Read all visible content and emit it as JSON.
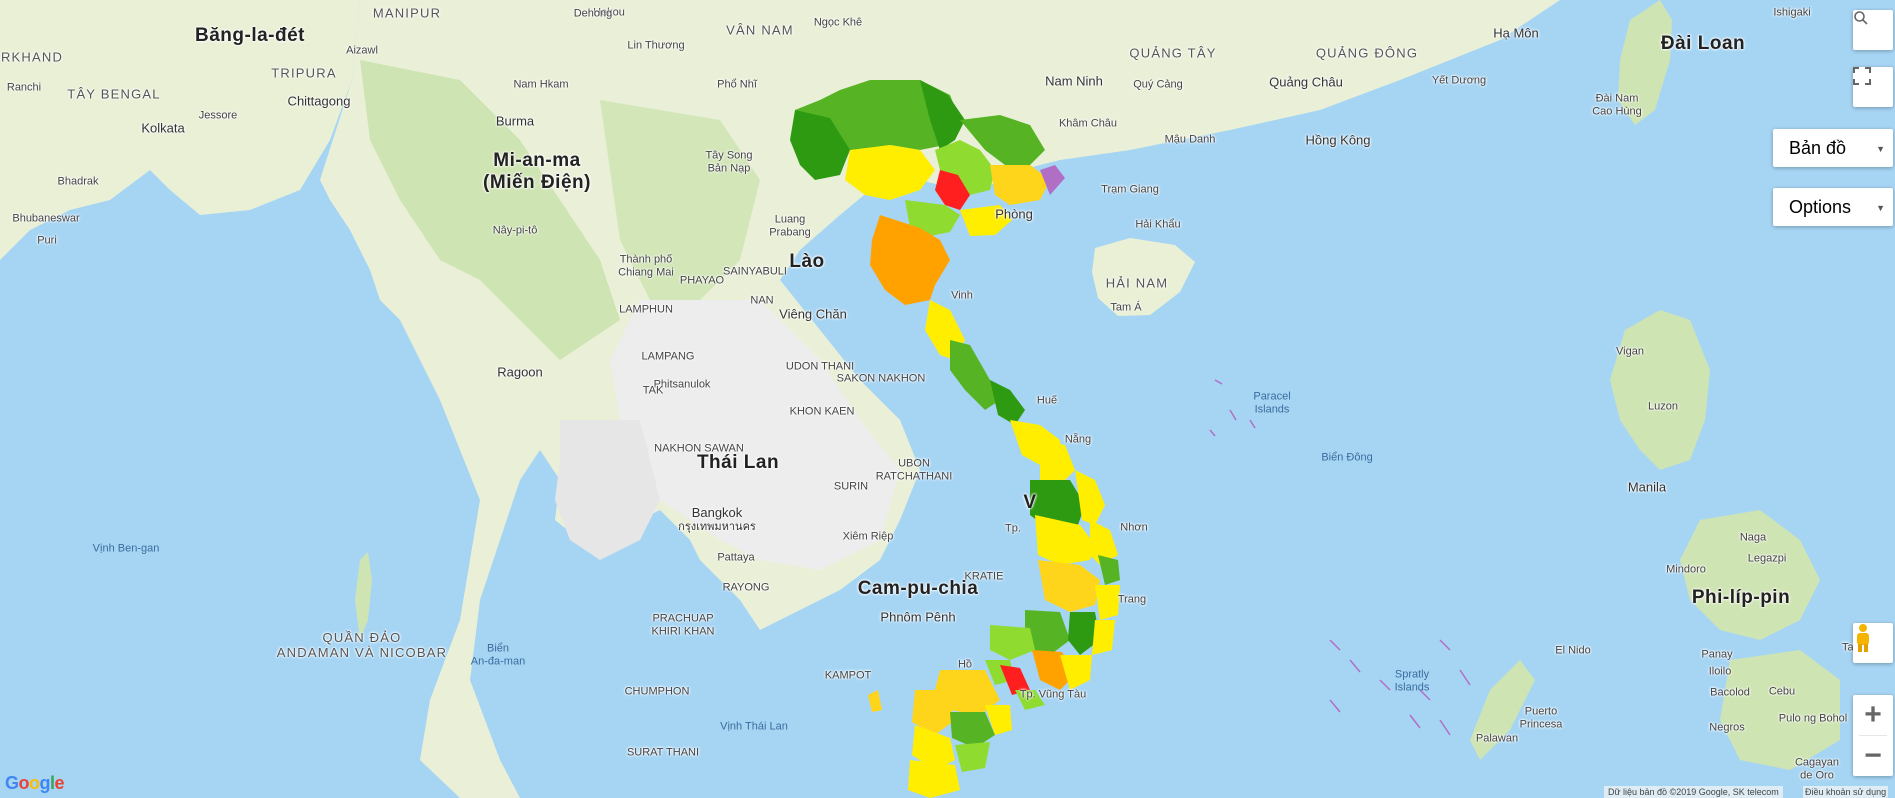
{
  "map": {
    "labels": [
      {
        "id": "bangladesh",
        "text": "Băng-la-đét",
        "type": "country"
      },
      {
        "id": "myanmar",
        "text": "Mi-an-ma",
        "sub": "(Miến Điện)",
        "type": "country"
      },
      {
        "id": "laos",
        "text": "Lào",
        "type": "country"
      },
      {
        "id": "thailand",
        "text": "Thái Lan",
        "type": "country"
      },
      {
        "id": "cambodia",
        "text": "Cam-pu-chia",
        "type": "country"
      },
      {
        "id": "taiwan",
        "text": "Đài Loan",
        "type": "country"
      },
      {
        "id": "philippines",
        "text": "Phi-líp-pin",
        "type": "country"
      },
      {
        "id": "vietnam",
        "text": "V",
        "type": "country"
      },
      {
        "id": "jharkhand",
        "text": "RKHAND",
        "type": "region"
      },
      {
        "id": "manipur",
        "text": "MANIPUR",
        "type": "region"
      },
      {
        "id": "tripura",
        "text": "TRIPURA",
        "type": "region"
      },
      {
        "id": "west-bengal",
        "text": "TÂY BENGAL",
        "type": "region"
      },
      {
        "id": "yunnan",
        "text": "VÂN NAM",
        "type": "region"
      },
      {
        "id": "guangxi",
        "text": "QUẢNG TÂY",
        "type": "region"
      },
      {
        "id": "guangdong",
        "text": "QUẢNG ĐÔNG",
        "type": "region"
      },
      {
        "id": "hainan",
        "text": "HẢI NAM",
        "type": "region"
      },
      {
        "id": "andaman",
        "text": "QUẦN ĐẢO",
        "sub": "ANDAMAN VÀ NICOBAR",
        "type": "region"
      },
      {
        "id": "ranchi",
        "text": "Ranchi",
        "type": "city-sm"
      },
      {
        "id": "kolkata",
        "text": "Kolkata",
        "type": "city"
      },
      {
        "id": "chittagong",
        "text": "Chittagong",
        "type": "city"
      },
      {
        "id": "bhubaneswar",
        "text": "Bhubaneswar",
        "type": "city-sm"
      },
      {
        "id": "puri",
        "text": "Puri",
        "type": "city-sm"
      },
      {
        "id": "bhadrak",
        "text": "Bhadrak",
        "type": "city-sm"
      },
      {
        "id": "jessore",
        "text": "Jessore",
        "type": "city-sm"
      },
      {
        "id": "aizawl",
        "text": "Aizawl",
        "type": "city-sm"
      },
      {
        "id": "burma",
        "text": "Burma",
        "type": "city"
      },
      {
        "id": "naypyidaw",
        "text": "Nây-pi-tô",
        "type": "city-sm"
      },
      {
        "id": "rangoon",
        "text": "Ragoon",
        "type": "city"
      },
      {
        "id": "chiangmai",
        "text": "Thành phố",
        "sub": "Chiang Mai",
        "type": "city-sm"
      },
      {
        "id": "phitsanulok",
        "text": "Phitsanulok",
        "type": "city-sm"
      },
      {
        "id": "nakhonsawan",
        "text": "NAKHON SAWAN",
        "type": "city-sm"
      },
      {
        "id": "bangkok",
        "text": "Bangkok",
        "sub": "กรุงเทพมหานคร",
        "type": "city"
      },
      {
        "id": "pattaya",
        "text": "Pattaya",
        "type": "city-sm"
      },
      {
        "id": "vientiane",
        "text": "Viêng Chăn",
        "type": "city"
      },
      {
        "id": "udonthani",
        "text": "UDON THANI",
        "type": "city-sm"
      },
      {
        "id": "sakonnakhon",
        "text": "SAKON NAKHON",
        "type": "city-sm"
      },
      {
        "id": "khonkaen",
        "text": "KHON KAEN",
        "type": "city-sm"
      },
      {
        "id": "ubon",
        "text": "UBON",
        "sub": "RATCHATHANI",
        "type": "city-sm"
      },
      {
        "id": "surin",
        "text": "SURIN",
        "type": "city-sm"
      },
      {
        "id": "siemreap",
        "text": "Xiêm Riệp",
        "type": "city-sm"
      },
      {
        "id": "phnompenh",
        "text": "Phnôm Pênh",
        "type": "city"
      },
      {
        "id": "hekou",
        "text": "Hekou",
        "type": "city-sm"
      },
      {
        "id": "dehong",
        "text": "Dehong",
        "type": "city-sm"
      },
      {
        "id": "lincang",
        "text": "Lin Thương",
        "type": "city-sm"
      },
      {
        "id": "puer",
        "text": "Phổ Nhĩ",
        "type": "city-sm"
      },
      {
        "id": "namhkam",
        "text": "Nam Hkam",
        "type": "city-sm"
      },
      {
        "id": "taysong",
        "text": "Tây Song",
        "sub": "Bản Nạp",
        "type": "city-sm"
      },
      {
        "id": "luangprabang",
        "text": "Luang",
        "sub": "Prabang",
        "type": "city-sm"
      },
      {
        "id": "ngockhe",
        "text": "Ngọc Khê",
        "type": "city-sm"
      },
      {
        "id": "nanning",
        "text": "Nam Ninh",
        "type": "city"
      },
      {
        "id": "quycang",
        "text": "Quý Cảng",
        "type": "city-sm"
      },
      {
        "id": "guangzhou",
        "text": "Quảng Châu",
        "type": "city"
      },
      {
        "id": "jiangmen",
        "text": "Yết Dương",
        "type": "city-sm"
      },
      {
        "id": "xiamen",
        "text": "Hạ Môn",
        "type": "city"
      },
      {
        "id": "hongkong",
        "text": "Hồng Kông",
        "type": "city"
      },
      {
        "id": "khamchau",
        "text": "Khâm Châu",
        "type": "city-sm"
      },
      {
        "id": "maudanh",
        "text": "Mậu Danh",
        "type": "city-sm"
      },
      {
        "id": "tramgiang",
        "text": "Trạm Giang",
        "type": "city-sm"
      },
      {
        "id": "haikhau",
        "text": "Hải Khẩu",
        "type": "city-sm"
      },
      {
        "id": "tama",
        "text": "Tam Á",
        "type": "city-sm"
      },
      {
        "id": "taiwan-city",
        "text": "Đài Nam",
        "sub": "Cao Hùng",
        "type": "city-sm"
      },
      {
        "id": "ishigaki",
        "text": "Ishigaki",
        "type": "city-sm"
      },
      {
        "id": "haiphong",
        "text": "Phòng",
        "type": "city"
      },
      {
        "id": "vinh",
        "text": "Vinh",
        "type": "city-sm"
      },
      {
        "id": "hue",
        "text": "Huế",
        "type": "city-sm"
      },
      {
        "id": "danang",
        "text": "Nẵng",
        "type": "city-sm"
      },
      {
        "id": "quynhon",
        "text": "Nhơn",
        "type": "city-sm"
      },
      {
        "id": "nhatrang",
        "text": "Trang",
        "type": "city-sm"
      },
      {
        "id": "tpho",
        "text": "Tp.",
        "type": "city-sm"
      },
      {
        "id": "hcm",
        "text": "Hồ",
        "type": "city-sm"
      },
      {
        "id": "vungtau",
        "text": "Tp. Vũng Tàu",
        "type": "city-sm"
      },
      {
        "id": "paracel",
        "text": "Paracel",
        "sub": "Islands",
        "type": "sea"
      },
      {
        "id": "biendong",
        "text": "Biển Đông",
        "type": "sea"
      },
      {
        "id": "spratly",
        "text": "Spratly",
        "sub": "Islands",
        "type": "sea"
      },
      {
        "id": "gulfthai",
        "text": "Vịnh Thái Lan",
        "type": "sea"
      },
      {
        "id": "bengal",
        "text": "Vịnh Ben-gan",
        "type": "sea"
      },
      {
        "id": "andamansea",
        "text": "Biển",
        "sub": "An-đa-man",
        "type": "sea"
      },
      {
        "id": "manila",
        "text": "Manila",
        "type": "city"
      },
      {
        "id": "luzon",
        "text": "Luzon",
        "type": "city-sm"
      },
      {
        "id": "vigan",
        "text": "Vigan",
        "type": "city-sm"
      },
      {
        "id": "naga",
        "text": "Naga",
        "type": "city-sm"
      },
      {
        "id": "legazpi",
        "text": "Legazpi",
        "type": "city-sm"
      },
      {
        "id": "mindoro",
        "text": "Mindoro",
        "type": "city-sm"
      },
      {
        "id": "panay",
        "text": "Panay",
        "type": "city-sm"
      },
      {
        "id": "iloilo",
        "text": "Iloilo",
        "type": "city-sm"
      },
      {
        "id": "bacolod",
        "text": "Bacolod",
        "type": "city-sm"
      },
      {
        "id": "cebu",
        "text": "Cebu",
        "type": "city-sm"
      },
      {
        "id": "tacloban",
        "text": "Tacloban",
        "type": "city-sm"
      },
      {
        "id": "negros",
        "text": "Negros",
        "type": "city-sm"
      },
      {
        "id": "pulogmbohol",
        "text": "Pulo ng Bohol",
        "type": "city-sm"
      },
      {
        "id": "elnido",
        "text": "El Nido",
        "type": "city-sm"
      },
      {
        "id": "puertoprincesa",
        "text": "Puerto",
        "sub": "Princesa",
        "type": "city-sm"
      },
      {
        "id": "palawan",
        "text": "Palawan",
        "type": "city-sm"
      },
      {
        "id": "cagayan",
        "text": "Cagayan",
        "sub": "de Oro",
        "type": "city-sm"
      },
      {
        "id": "chumphon",
        "text": "CHUMPHON",
        "type": "city-sm"
      },
      {
        "id": "suratthani",
        "text": "SURAT THANI",
        "type": "city-sm"
      },
      {
        "id": "rayong",
        "text": "RAYONG",
        "type": "city-sm"
      },
      {
        "id": "lampang",
        "text": "LAMPANG",
        "type": "city-sm"
      },
      {
        "id": "phayao",
        "text": "PHAYAO",
        "type": "city-sm"
      },
      {
        "id": "tak",
        "text": "TAK",
        "type": "city-sm"
      },
      {
        "id": "lamphun",
        "text": "LAMPHUN",
        "type": "city-sm"
      },
      {
        "id": "nan",
        "text": "NAN",
        "type": "city-sm"
      },
      {
        "id": "sainyabuli",
        "text": "SAINYABULI",
        "type": "city-sm"
      },
      {
        "id": "kratie",
        "text": "KRATIE",
        "type": "city-sm"
      },
      {
        "id": "kampot",
        "text": "KAMPOT",
        "type": "city-sm"
      },
      {
        "id": "prachuap",
        "text": "PRACHUAP",
        "sub": "KHIRI KHAN",
        "type": "city-sm"
      }
    ],
    "province_colors": {
      "dark_green": "#2e9a12",
      "green": "#56b424",
      "light_green": "#8fdb2f",
      "yellow": "#ffee00",
      "gold": "#ffd51c",
      "orange": "#ffa200",
      "red": "#ff1f1f",
      "islands": "#b06fc5"
    }
  },
  "controls": {
    "search_icon": "search-icon",
    "fullscreen_icon": "fullscreen-icon",
    "map_type_label": "Bản đồ",
    "options_label": "Options",
    "zoom_in": "+",
    "zoom_out": "−",
    "pegman_icon": "pegman-icon"
  },
  "footer": {
    "logo": "Google",
    "attribution": "Dữ liệu bản đồ ©2019 Google, SK telecom",
    "terms": "Điều khoản sử dụng"
  }
}
